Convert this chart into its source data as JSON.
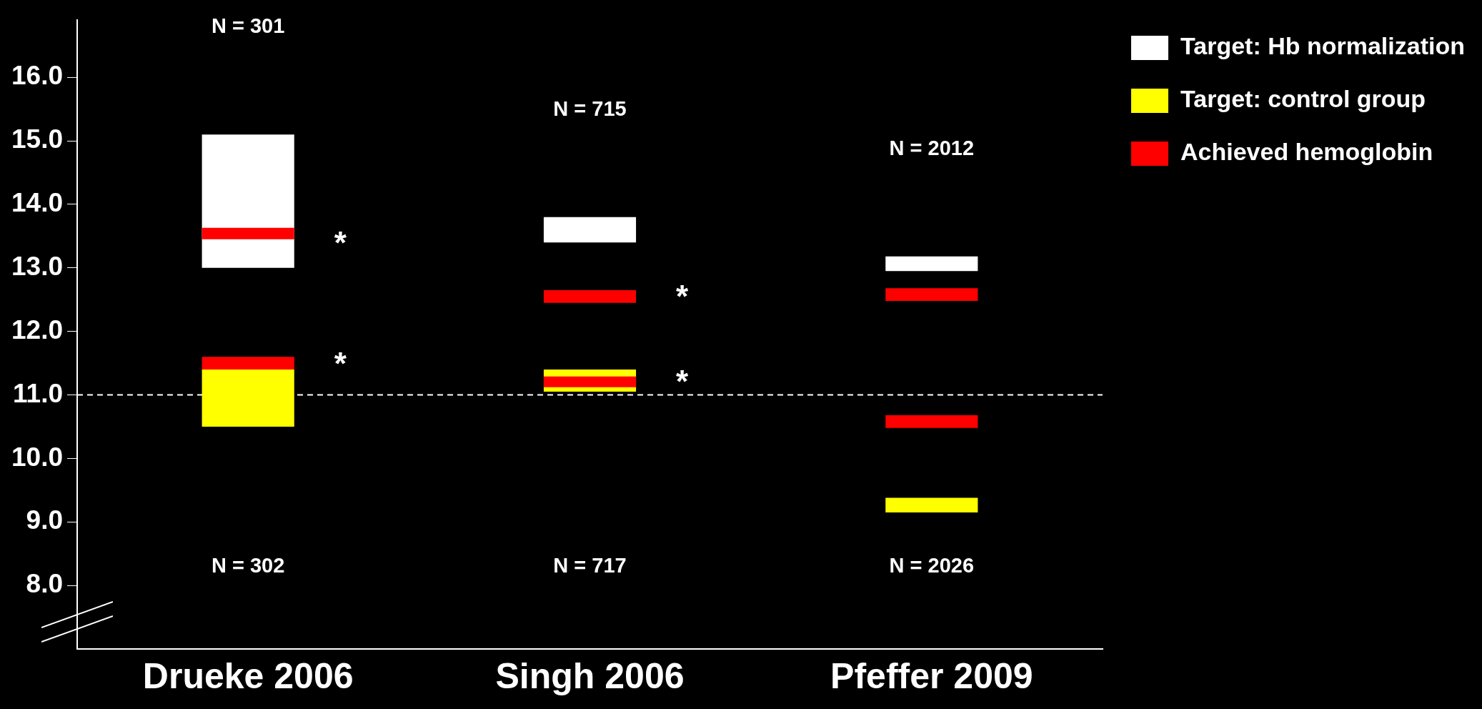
{
  "chart_data": {
    "type": "bar",
    "categories": [
      "Drueke 2006",
      "Singh 2006",
      "Pfeffer 2009"
    ],
    "series": [
      {
        "name": "Target: Hb normalization",
        "color": "#ffffff",
        "base": [
          13,
          13.4,
          12.95
        ],
        "values": [
          2.1,
          0.4,
          0.23
        ]
      },
      {
        "name": "Target: control group",
        "color": "#ffff00",
        "base": [
          10.5,
          11.05,
          9.15
        ],
        "values": [
          0.9,
          0.35,
          0.23
        ]
      },
      {
        "name": "Achieved hemoglobin",
        "color": "#ff0000",
        "base": [
          13.45,
          12.45,
          12.48
        ],
        "values": [
          0.18,
          0.2,
          0.2
        ]
      },
      {
        "color": "#ff0000",
        "base": [
          11.4,
          11.12,
          10.48
        ],
        "values": [
          0.2,
          0.17,
          0.2
        ]
      }
    ],
    "ylim": [
      7,
      16.9
    ],
    "yticks": [
      {
        "value": 8,
        "label": "8.0"
      },
      {
        "value": 9,
        "label": "9.0"
      },
      {
        "value": 10,
        "label": "10.0"
      },
      {
        "value": 11,
        "label": "11.0"
      },
      {
        "value": 12,
        "label": "12.0"
      },
      {
        "value": 13,
        "label": "13.0"
      },
      {
        "value": 14,
        "label": "14.0"
      },
      {
        "value": 15,
        "label": "15.0"
      },
      {
        "value": 16,
        "label": "16.0"
      }
    ],
    "ref_lines": [
      {
        "axis": "y",
        "value": 11,
        "color": "#ffffff",
        "line_style": "dashed"
      }
    ],
    "annotations": [
      "N = 301",
      "N = 715",
      "N = 2012",
      "N = 302",
      "N = 717",
      "N = 2026",
      {
        "text": "*",
        "x": "Drueke 2006",
        "y": 13.45
      },
      {
        "text": "*",
        "x": "Drueke 2006",
        "y": 11.55
      },
      {
        "text": "*",
        "x": "Singh 2006",
        "y": 12.6
      },
      {
        "text": "*",
        "x": "Singh 2006",
        "y": 11.27
      }
    ],
    "grid": false,
    "legend": "top right"
  }
}
